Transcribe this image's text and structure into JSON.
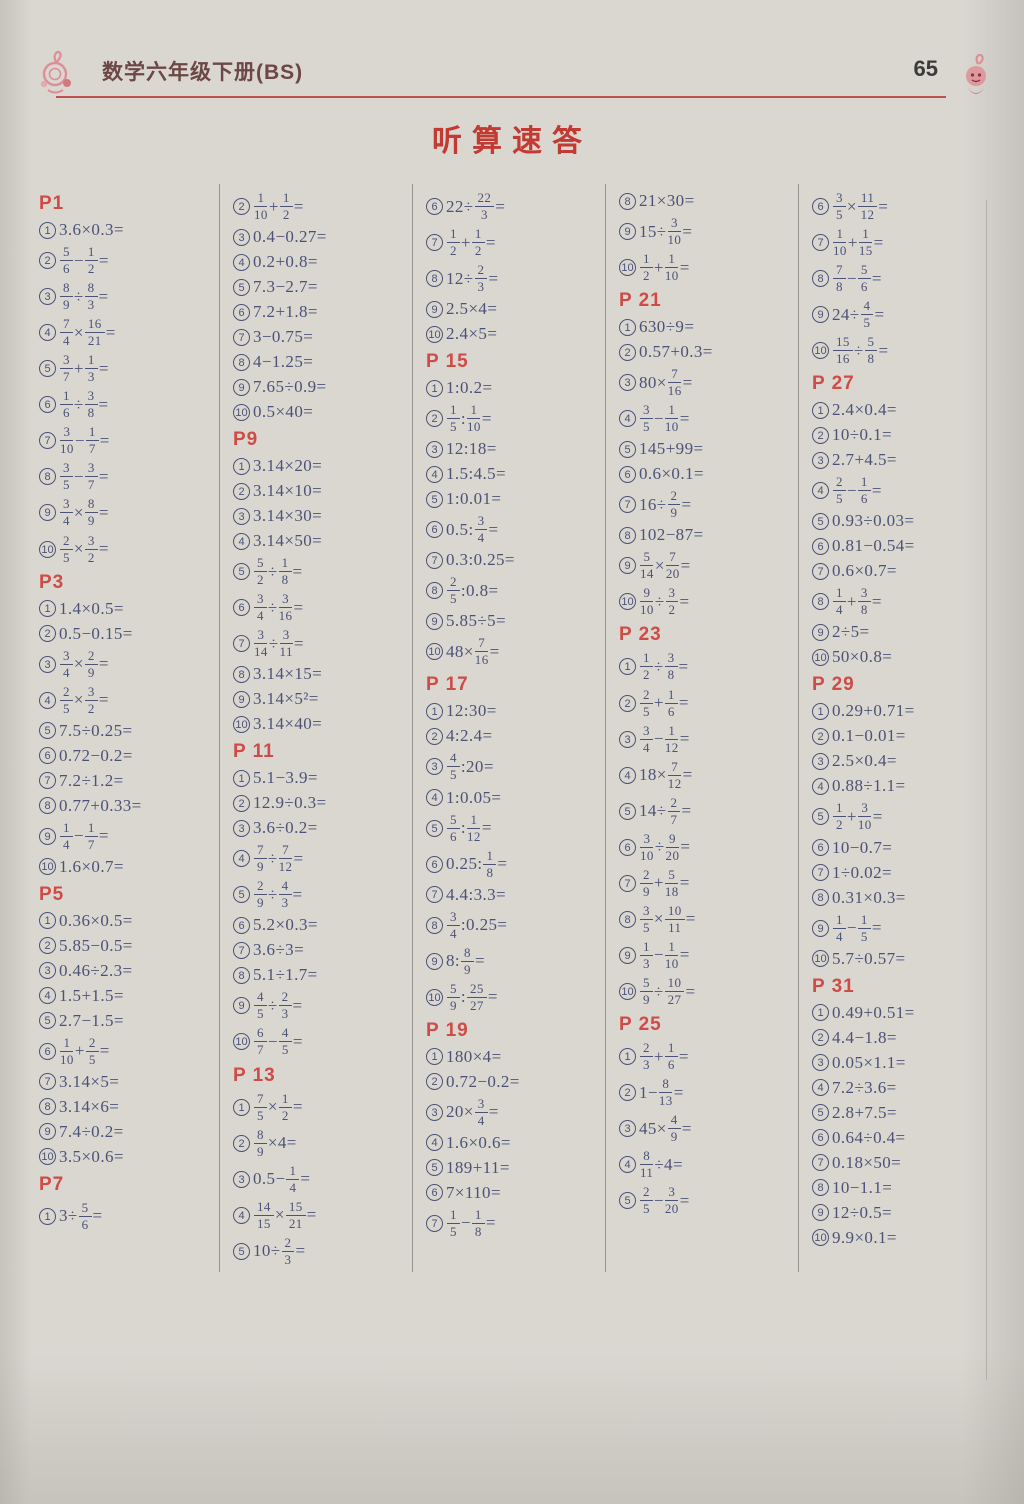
{
  "header": {
    "book_title": "数学六年级下册(BS)",
    "page_number": "65"
  },
  "main_title": "听算速答",
  "columns": [
    {
      "blocks": [
        {
          "header": "P1",
          "problems": [
            {
              "n": "1",
              "expr": "3.6×0.3="
            },
            {
              "n": "2",
              "expr": "{5/6}−{1/2}="
            },
            {
              "n": "3",
              "expr": "{8/9}÷{8/3}="
            },
            {
              "n": "4",
              "expr": "{7/4}×{16/21}="
            },
            {
              "n": "5",
              "expr": "{3/7}+{1/3}="
            },
            {
              "n": "6",
              "expr": "{1/6}÷{3/8}="
            },
            {
              "n": "7",
              "expr": "{3/10}−{1/7}="
            },
            {
              "n": "8",
              "expr": "{3/5}−{3/7}="
            },
            {
              "n": "9",
              "expr": "{3/4}×{8/9}="
            },
            {
              "n": "10",
              "expr": "{2/5}×{3/2}="
            }
          ]
        },
        {
          "header": "P3",
          "problems": [
            {
              "n": "1",
              "expr": "1.4×0.5="
            },
            {
              "n": "2",
              "expr": "0.5−0.15="
            },
            {
              "n": "3",
              "expr": "{3/4}×{2/9}="
            },
            {
              "n": "4",
              "expr": "{2/5}×{3/2}="
            },
            {
              "n": "5",
              "expr": "7.5÷0.25="
            },
            {
              "n": "6",
              "expr": "0.72−0.2="
            },
            {
              "n": "7",
              "expr": "7.2÷1.2="
            },
            {
              "n": "8",
              "expr": "0.77+0.33="
            },
            {
              "n": "9",
              "expr": "{1/4}−{1/7}="
            },
            {
              "n": "10",
              "expr": "1.6×0.7="
            }
          ]
        },
        {
          "header": "P5",
          "problems": [
            {
              "n": "1",
              "expr": "0.36×0.5="
            },
            {
              "n": "2",
              "expr": "5.85−0.5="
            },
            {
              "n": "3",
              "expr": "0.46÷2.3="
            },
            {
              "n": "4",
              "expr": "1.5+1.5="
            },
            {
              "n": "5",
              "expr": "2.7−1.5="
            },
            {
              "n": "6",
              "expr": "{1/10}+{2/5}="
            },
            {
              "n": "7",
              "expr": "3.14×5="
            },
            {
              "n": "8",
              "expr": "3.14×6="
            },
            {
              "n": "9",
              "expr": "7.4÷0.2="
            },
            {
              "n": "10",
              "expr": "3.5×0.6="
            }
          ]
        },
        {
          "header": "P7",
          "problems": [
            {
              "n": "1",
              "expr": "3÷{5/6}="
            }
          ]
        }
      ]
    },
    {
      "blocks": [
        {
          "header": "",
          "problems": [
            {
              "n": "2",
              "expr": "{1/10}+{1/2}="
            },
            {
              "n": "3",
              "expr": "0.4−0.27="
            },
            {
              "n": "4",
              "expr": "0.2+0.8="
            },
            {
              "n": "5",
              "expr": "7.3−2.7="
            },
            {
              "n": "6",
              "expr": "7.2+1.8="
            },
            {
              "n": "7",
              "expr": "3−0.75="
            },
            {
              "n": "8",
              "expr": "4−1.25="
            },
            {
              "n": "9",
              "expr": "7.65÷0.9="
            },
            {
              "n": "10",
              "expr": "0.5×40="
            }
          ]
        },
        {
          "header": "P9",
          "problems": [
            {
              "n": "1",
              "expr": "3.14×20="
            },
            {
              "n": "2",
              "expr": "3.14×10="
            },
            {
              "n": "3",
              "expr": "3.14×30="
            },
            {
              "n": "4",
              "expr": "3.14×50="
            },
            {
              "n": "5",
              "expr": "{5/2}÷{1/8}="
            },
            {
              "n": "6",
              "expr": "{3/4}÷{3/16}="
            },
            {
              "n": "7",
              "expr": "{3/14}÷{3/11}="
            },
            {
              "n": "8",
              "expr": "3.14×15="
            },
            {
              "n": "9",
              "expr": "3.14×5²="
            },
            {
              "n": "10",
              "expr": "3.14×40="
            }
          ]
        },
        {
          "header": "P 11",
          "problems": [
            {
              "n": "1",
              "expr": "5.1−3.9="
            },
            {
              "n": "2",
              "expr": "12.9÷0.3="
            },
            {
              "n": "3",
              "expr": "3.6÷0.2="
            },
            {
              "n": "4",
              "expr": "{7/9}÷{7/12}="
            },
            {
              "n": "5",
              "expr": "{2/9}÷{4/3}="
            },
            {
              "n": "6",
              "expr": "5.2×0.3="
            },
            {
              "n": "7",
              "expr": "3.6÷3="
            },
            {
              "n": "8",
              "expr": "5.1÷1.7="
            },
            {
              "n": "9",
              "expr": "{4/5}÷{2/3}="
            },
            {
              "n": "10",
              "expr": "{6/7}−{4/5}="
            }
          ]
        },
        {
          "header": "P 13",
          "problems": [
            {
              "n": "1",
              "expr": "{7/5}×{1/2}="
            },
            {
              "n": "2",
              "expr": "{8/9}×4="
            },
            {
              "n": "3",
              "expr": "0.5−{1/4}="
            },
            {
              "n": "4",
              "expr": "{14/15}×{15/21}="
            },
            {
              "n": "5",
              "expr": "10÷{2/3}="
            }
          ]
        }
      ]
    },
    {
      "blocks": [
        {
          "header": "",
          "problems": [
            {
              "n": "6",
              "expr": "22÷{22/3}="
            },
            {
              "n": "7",
              "expr": "{1/2}+{1/2}="
            },
            {
              "n": "8",
              "expr": "12÷{2/3}="
            },
            {
              "n": "9",
              "expr": "2.5×4="
            },
            {
              "n": "10",
              "expr": "2.4×5="
            }
          ]
        },
        {
          "header": "P 15",
          "problems": [
            {
              "n": "1",
              "expr": "1:0.2="
            },
            {
              "n": "2",
              "expr": "{1/5}:{1/10}="
            },
            {
              "n": "3",
              "expr": "12:18="
            },
            {
              "n": "4",
              "expr": "1.5:4.5="
            },
            {
              "n": "5",
              "expr": "1:0.01="
            },
            {
              "n": "6",
              "expr": "0.5:{3/4}="
            },
            {
              "n": "7",
              "expr": "0.3:0.25="
            },
            {
              "n": "8",
              "expr": "{2/5}:0.8="
            },
            {
              "n": "9",
              "expr": "5.85÷5="
            },
            {
              "n": "10",
              "expr": "48×{7/16}="
            }
          ]
        },
        {
          "header": "P 17",
          "problems": [
            {
              "n": "1",
              "expr": "12:30="
            },
            {
              "n": "2",
              "expr": "4:2.4="
            },
            {
              "n": "3",
              "expr": "{4/5}:20="
            },
            {
              "n": "4",
              "expr": "1:0.05="
            },
            {
              "n": "5",
              "expr": "{5/6}:{1/12}="
            },
            {
              "n": "6",
              "expr": "0.25:{1/8}="
            },
            {
              "n": "7",
              "expr": "4.4:3.3="
            },
            {
              "n": "8",
              "expr": "{3/4}:0.25="
            },
            {
              "n": "9",
              "expr": "8:{8/9}="
            },
            {
              "n": "10",
              "expr": "{5/9}:{25/27}="
            }
          ]
        },
        {
          "header": "P 19",
          "problems": [
            {
              "n": "1",
              "expr": "180×4="
            },
            {
              "n": "2",
              "expr": "0.72−0.2="
            },
            {
              "n": "3",
              "expr": "20×{3/4}="
            },
            {
              "n": "4",
              "expr": "1.6×0.6="
            },
            {
              "n": "5",
              "expr": "189+11="
            },
            {
              "n": "6",
              "expr": "7×110="
            },
            {
              "n": "7",
              "expr": "{1/5}−{1/8}="
            }
          ]
        }
      ]
    },
    {
      "blocks": [
        {
          "header": "",
          "problems": [
            {
              "n": "8",
              "expr": "21×30="
            },
            {
              "n": "9",
              "expr": "15÷{3/10}="
            },
            {
              "n": "10",
              "expr": "{1/2}+{1/10}="
            }
          ]
        },
        {
          "header": "P 21",
          "problems": [
            {
              "n": "1",
              "expr": "630÷9="
            },
            {
              "n": "2",
              "expr": "0.57+0.3="
            },
            {
              "n": "3",
              "expr": "80×{7/16}="
            },
            {
              "n": "4",
              "expr": "{3/5}−{1/10}="
            },
            {
              "n": "5",
              "expr": "145+99="
            },
            {
              "n": "6",
              "expr": "0.6×0.1="
            },
            {
              "n": "7",
              "expr": "16÷{2/9}="
            },
            {
              "n": "8",
              "expr": "102−87="
            },
            {
              "n": "9",
              "expr": "{5/14}×{7/20}="
            },
            {
              "n": "10",
              "expr": "{9/10}÷{3/2}="
            }
          ]
        },
        {
          "header": "P 23",
          "problems": [
            {
              "n": "1",
              "expr": "{1/2}÷{3/8}="
            },
            {
              "n": "2",
              "expr": "{2/5}+{1/6}="
            },
            {
              "n": "3",
              "expr": "{3/4}−{1/12}="
            },
            {
              "n": "4",
              "expr": "18×{7/12}="
            },
            {
              "n": "5",
              "expr": "14÷{2/7}="
            },
            {
              "n": "6",
              "expr": "{3/10}÷{9/20}="
            },
            {
              "n": "7",
              "expr": "{2/9}+{5/18}="
            },
            {
              "n": "8",
              "expr": "{3/5}×{10/11}="
            },
            {
              "n": "9",
              "expr": "{1/3}−{1/10}="
            },
            {
              "n": "10",
              "expr": "{5/9}÷{10/27}="
            }
          ]
        },
        {
          "header": "P 25",
          "problems": [
            {
              "n": "1",
              "expr": "{2/3}+{1/6}="
            },
            {
              "n": "2",
              "expr": "1−{8/13}="
            },
            {
              "n": "3",
              "expr": "45×{4/9}="
            },
            {
              "n": "4",
              "expr": "{8/11}÷4="
            },
            {
              "n": "5",
              "expr": "{2/5}−{3/20}="
            }
          ]
        }
      ]
    },
    {
      "blocks": [
        {
          "header": "",
          "problems": [
            {
              "n": "6",
              "expr": "{3/5}×{11/12}="
            },
            {
              "n": "7",
              "expr": "{1/10}+{1/15}="
            },
            {
              "n": "8",
              "expr": "{7/8}−{5/6}="
            },
            {
              "n": "9",
              "expr": "24÷{4/5}="
            },
            {
              "n": "10",
              "expr": "{15/16}÷{5/8}="
            }
          ]
        },
        {
          "header": "P 27",
          "problems": [
            {
              "n": "1",
              "expr": "2.4×0.4="
            },
            {
              "n": "2",
              "expr": "10÷0.1="
            },
            {
              "n": "3",
              "expr": "2.7+4.5="
            },
            {
              "n": "4",
              "expr": "{2/5}−{1/6}="
            },
            {
              "n": "5",
              "expr": "0.93÷0.03="
            },
            {
              "n": "6",
              "expr": "0.81−0.54="
            },
            {
              "n": "7",
              "expr": "0.6×0.7="
            },
            {
              "n": "8",
              "expr": "{1/4}+{3/8}="
            },
            {
              "n": "9",
              "expr": "2÷5="
            },
            {
              "n": "10",
              "expr": "50×0.8="
            }
          ]
        },
        {
          "header": "P 29",
          "problems": [
            {
              "n": "1",
              "expr": "0.29+0.71="
            },
            {
              "n": "2",
              "expr": "0.1−0.01="
            },
            {
              "n": "3",
              "expr": "2.5×0.4="
            },
            {
              "n": "4",
              "expr": "0.88÷1.1="
            },
            {
              "n": "5",
              "expr": "{1/2}+{3/10}="
            },
            {
              "n": "6",
              "expr": "10−0.7="
            },
            {
              "n": "7",
              "expr": "1÷0.02="
            },
            {
              "n": "8",
              "expr": "0.31×0.3="
            },
            {
              "n": "9",
              "expr": "{1/4}−{1/5}="
            },
            {
              "n": "10",
              "expr": "5.7÷0.57="
            }
          ]
        },
        {
          "header": "P 31",
          "problems": [
            {
              "n": "1",
              "expr": "0.49+0.51="
            },
            {
              "n": "2",
              "expr": "4.4−1.8="
            },
            {
              "n": "3",
              "expr": "0.05×1.1="
            },
            {
              "n": "4",
              "expr": "7.2÷3.6="
            },
            {
              "n": "5",
              "expr": "2.8+7.5="
            },
            {
              "n": "6",
              "expr": "0.64÷0.4="
            },
            {
              "n": "7",
              "expr": "0.18×50="
            },
            {
              "n": "8",
              "expr": "10−1.1="
            },
            {
              "n": "9",
              "expr": "12÷0.5="
            },
            {
              "n": "10",
              "expr": "9.9×0.1="
            }
          ]
        }
      ]
    }
  ],
  "colors": {
    "paper": "#d9d7d0",
    "problem_text": "#4c5277",
    "section_red": "#cf4b47",
    "title_red": "#c23a31",
    "rule_red": "#c0504d",
    "mascot_pink": "#dd8f98"
  }
}
